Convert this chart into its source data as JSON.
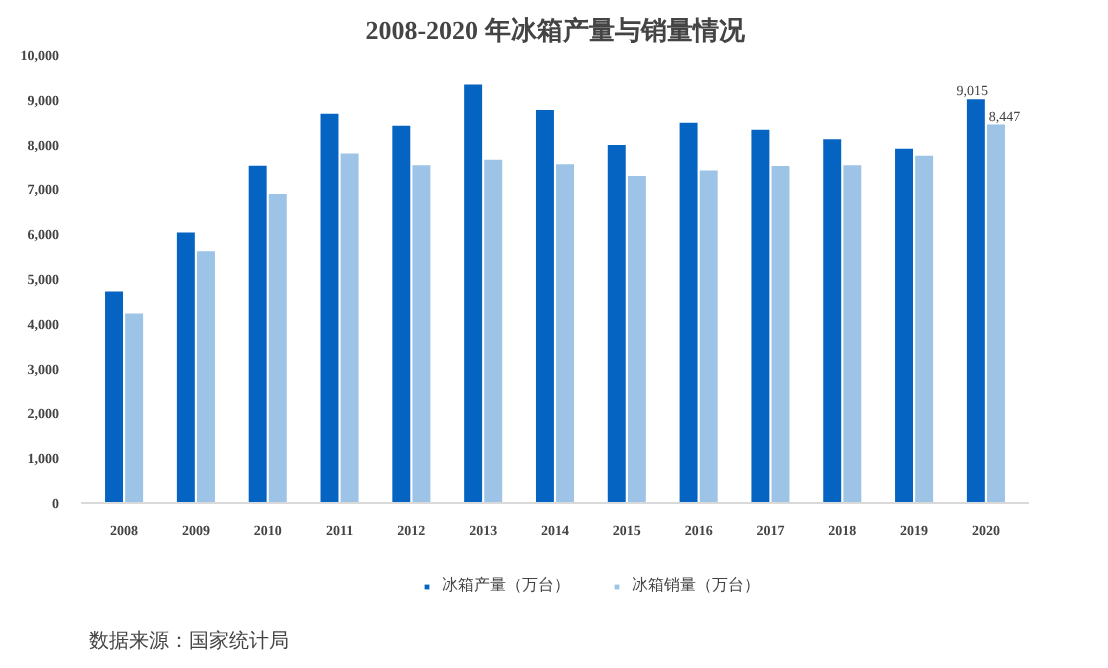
{
  "chart_data": {
    "type": "bar",
    "title": "2008-2020 年冰箱产量与销量情况",
    "categories": [
      "2008",
      "2009",
      "2010",
      "2011",
      "2012",
      "2013",
      "2014",
      "2015",
      "2016",
      "2017",
      "2018",
      "2019",
      "2020"
    ],
    "series": [
      {
        "name": "冰箱产量（万台）",
        "color": "#0563c1",
        "values": [
          4720,
          6040,
          7530,
          8690,
          8420,
          9340,
          8770,
          7990,
          8490,
          8330,
          8120,
          7910,
          9015
        ],
        "value_labels": [
          null,
          null,
          null,
          null,
          null,
          null,
          null,
          null,
          null,
          null,
          null,
          null,
          "9,015"
        ]
      },
      {
        "name": "冰箱销量（万台）",
        "color": "#9dc3e6",
        "values": [
          4230,
          5620,
          6900,
          7800,
          7540,
          7660,
          7560,
          7300,
          7420,
          7520,
          7540,
          7750,
          8447
        ],
        "value_labels": [
          null,
          null,
          null,
          null,
          null,
          null,
          null,
          null,
          null,
          null,
          null,
          null,
          "8,447"
        ]
      }
    ],
    "ylim": [
      0,
      10000
    ],
    "yticks": [
      {
        "value": 0,
        "label": "0"
      },
      {
        "value": 1000,
        "label": "1,000"
      },
      {
        "value": 2000,
        "label": "2,000"
      },
      {
        "value": 3000,
        "label": "3,000"
      },
      {
        "value": 4000,
        "label": "4,000"
      },
      {
        "value": 5000,
        "label": "5,000"
      },
      {
        "value": 6000,
        "label": "6,000"
      },
      {
        "value": 7000,
        "label": "7,000"
      },
      {
        "value": 8000,
        "label": "8,000"
      },
      {
        "value": 9000,
        "label": "9,000"
      },
      {
        "value": 10000,
        "label": "10,000"
      }
    ],
    "grid": false,
    "legend": "bottom",
    "annotations": [
      "数据来源：国家统计局"
    ]
  }
}
